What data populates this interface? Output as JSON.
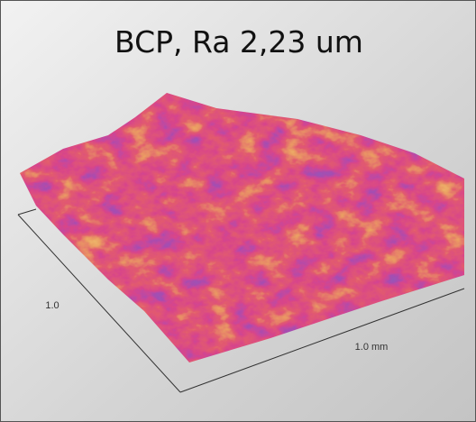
{
  "title": "BCP, Ra 2,23 um",
  "axis_labels": {
    "left": "1.0",
    "right": "1.0 mm"
  }
}
